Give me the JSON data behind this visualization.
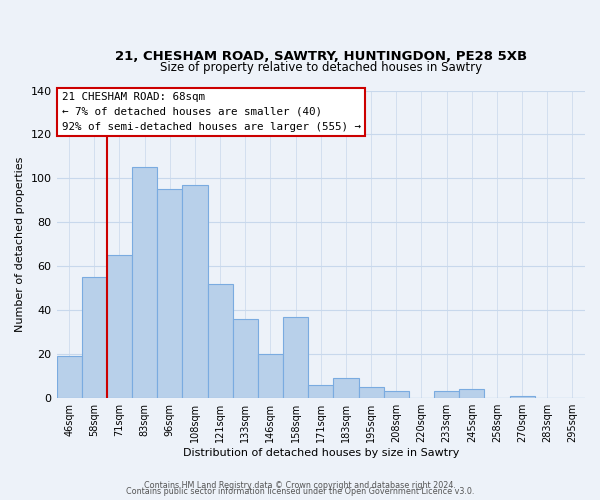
{
  "title": "21, CHESHAM ROAD, SAWTRY, HUNTINGDON, PE28 5XB",
  "subtitle": "Size of property relative to detached houses in Sawtry",
  "xlabel": "Distribution of detached houses by size in Sawtry",
  "ylabel": "Number of detached properties",
  "bar_labels": [
    "46sqm",
    "58sqm",
    "71sqm",
    "83sqm",
    "96sqm",
    "108sqm",
    "121sqm",
    "133sqm",
    "146sqm",
    "158sqm",
    "171sqm",
    "183sqm",
    "195sqm",
    "208sqm",
    "220sqm",
    "233sqm",
    "245sqm",
    "258sqm",
    "270sqm",
    "283sqm",
    "295sqm"
  ],
  "bar_values": [
    19,
    55,
    65,
    105,
    95,
    97,
    52,
    36,
    20,
    37,
    6,
    9,
    5,
    3,
    0,
    3,
    4,
    0,
    1,
    0,
    0
  ],
  "bar_color": "#b8d0ea",
  "bar_edge_color": "#7aabe0",
  "vline_color": "#cc0000",
  "vline_pos": 2.5,
  "ylim": [
    0,
    140
  ],
  "yticks": [
    0,
    20,
    40,
    60,
    80,
    100,
    120,
    140
  ],
  "annotation_line1": "21 CHESHAM ROAD: 68sqm",
  "annotation_line2": "← 7% of detached houses are smaller (40)",
  "annotation_line3": "92% of semi-detached houses are larger (555) →",
  "footer1": "Contains HM Land Registry data © Crown copyright and database right 2024.",
  "footer2": "Contains public sector information licensed under the Open Government Licence v3.0.",
  "background_color": "#edf2f9",
  "grid_color": "#c8d8ec"
}
